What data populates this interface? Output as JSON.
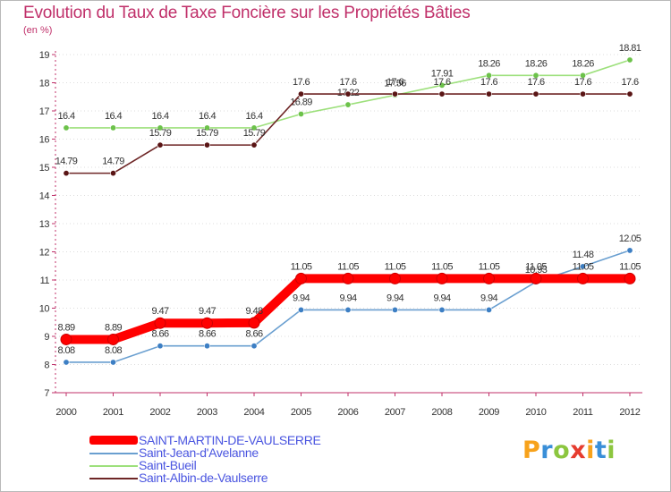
{
  "header": {
    "title": "Evolution du Taux de Taxe Foncière sur les Propriétés Bâties",
    "unit": "(en %)"
  },
  "brand": {
    "letters": [
      "P",
      "r",
      "o",
      "x",
      "i",
      "t",
      "i"
    ],
    "colors": [
      "#f7a21b",
      "#3a8fd8",
      "#8cc63f",
      "#e63c2f",
      "#f7a21b",
      "#3a8fd8",
      "#8cc63f"
    ]
  },
  "chart_data": {
    "type": "line",
    "title": "Evolution du Taux de Taxe Foncière sur les Propriétés Bâties",
    "ylabel": "(en %)",
    "xlabel": "",
    "ylim": [
      7,
      19
    ],
    "yticks": [
      "7",
      "8",
      "9",
      "10",
      "11",
      "12",
      "13",
      "14",
      "15",
      "16",
      "17",
      "18",
      "19"
    ],
    "x": [
      "2000",
      "2001",
      "2002",
      "2003",
      "2004",
      "2005",
      "2006",
      "2007",
      "2008",
      "2009",
      "2010",
      "2011",
      "2012"
    ],
    "series": [
      {
        "name": "Saint-Jean-d'Avelanne",
        "color": "#6a9fd0",
        "marker": "#3d7fc4",
        "values": [
          8.08,
          8.08,
          8.66,
          8.66,
          8.66,
          9.94,
          9.94,
          9.94,
          9.94,
          9.94,
          10.93,
          11.48,
          12.05
        ],
        "labels": [
          "8.08",
          "8.08",
          "8.66",
          "8.66",
          "8.66",
          "9.94",
          "9.94",
          "9.94",
          "9.94",
          "9.94",
          "10.93",
          "11.48",
          "12.05"
        ]
      },
      {
        "name": "Saint-Bueil",
        "color": "#9de07c",
        "marker": "#6cc24a",
        "values": [
          16.4,
          16.4,
          16.4,
          16.4,
          16.4,
          16.89,
          17.22,
          17.56,
          17.91,
          18.26,
          18.26,
          18.26,
          18.81
        ],
        "labels": [
          "16.4",
          "16.4",
          "16.4",
          "16.4",
          "16.4",
          "16.89",
          "17.22",
          "17.56",
          "17.91",
          "18.26",
          "18.26",
          "18.26",
          "18.81"
        ]
      },
      {
        "name": "Saint-Albin-de-Vaulserre",
        "color": "#6e2626",
        "marker": "#5a1515",
        "values": [
          14.79,
          14.79,
          15.79,
          15.79,
          15.79,
          17.6,
          17.6,
          17.6,
          17.6,
          17.6,
          17.6,
          17.6,
          17.6
        ],
        "labels": [
          "14.79",
          "14.79",
          "15.79",
          "15.79",
          "15.79",
          "17.6",
          "17.6",
          "17.6",
          "17.6",
          "17.6",
          "17.6",
          "17.6",
          "17.6"
        ]
      },
      {
        "name": "SAINT-MARTIN-DE-VAULSERRE",
        "color": "#ff0000",
        "marker": "#ff0000",
        "values": [
          8.89,
          8.89,
          9.47,
          9.47,
          9.48,
          11.05,
          11.05,
          11.05,
          11.05,
          11.05,
          11.05,
          11.05,
          11.05
        ],
        "labels": [
          "8.89",
          "8.89",
          "9.47",
          "9.47",
          "9.48",
          "11.05",
          "11.05",
          "11.05",
          "11.05",
          "11.05",
          "11.05",
          "11.05",
          "11.05"
        ]
      }
    ],
    "legend": [
      {
        "name": "SAINT-MARTIN-DE-VAULSERRE",
        "color": "#ff0000",
        "thick": true
      },
      {
        "name": "Saint-Jean-d'Avelanne",
        "color": "#6a9fd0",
        "thick": false
      },
      {
        "name": "Saint-Bueil",
        "color": "#9de07c",
        "thick": false
      },
      {
        "name": "Saint-Albin-de-Vaulserre",
        "color": "#6e2626",
        "thick": false
      }
    ]
  }
}
